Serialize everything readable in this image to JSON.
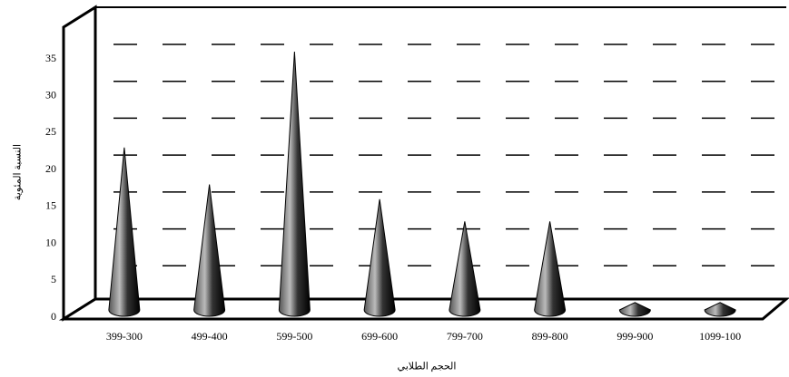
{
  "chart_data": {
    "type": "cone",
    "y_label": "النسبة المئوية",
    "x_label": "الحجم الطلابي",
    "categories": [
      "399-300",
      "499-400",
      "599-500",
      "699-600",
      "799-700",
      "899-800",
      "999-900",
      "1099-100"
    ],
    "values": [
      22,
      17,
      35,
      15,
      12,
      12,
      1,
      1
    ],
    "color": "#222222",
    "ylim": [
      0,
      35
    ],
    "yticks": [
      0,
      5,
      10,
      15,
      20,
      25,
      30,
      35
    ],
    "grid": true
  }
}
